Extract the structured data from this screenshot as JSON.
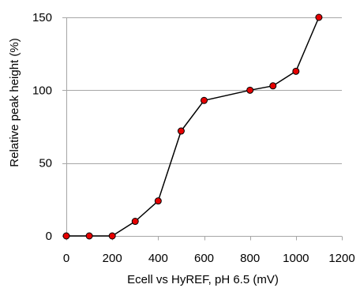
{
  "chart_data": {
    "type": "scatter",
    "title": "",
    "xlabel": "Ecell vs HyREF, pH 6.5 (mV)",
    "ylabel": "Relative peak height (%)",
    "xlim": [
      0,
      1200
    ],
    "ylim": [
      0,
      150
    ],
    "xticks": [
      0,
      200,
      400,
      600,
      800,
      1000,
      1200
    ],
    "yticks": [
      0,
      50,
      100,
      150
    ],
    "xtick_labels": [
      "0",
      "200",
      "400",
      "600",
      "800",
      "1000",
      "1200"
    ],
    "ytick_labels": [
      "0",
      "50",
      "100",
      "150"
    ],
    "grid": "horizontal",
    "legend": "none",
    "series": [
      {
        "x": [
          0,
          100,
          200,
          300,
          400,
          500,
          600,
          800,
          900,
          1000,
          1100
        ],
        "y": [
          0,
          0,
          0,
          10,
          24,
          72,
          93,
          100,
          103,
          113,
          150
        ],
        "line_color": "#000000",
        "marker_fill": "#e60000",
        "marker_edge": "#000000"
      }
    ],
    "colors": {
      "gridline": "#a6a6a6",
      "axis": "#a6a6a6",
      "text": "#000000"
    }
  }
}
